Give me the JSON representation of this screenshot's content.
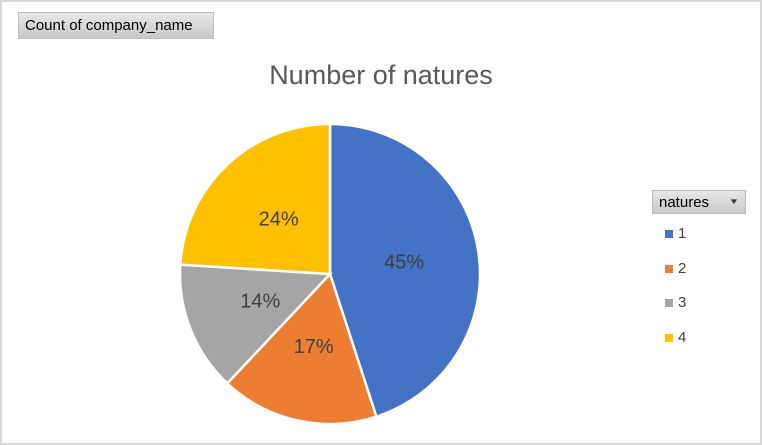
{
  "pivot": {
    "values_button_label": "Count of company_name",
    "legend_field_button_label": "natures"
  },
  "chart_data": {
    "type": "pie",
    "title": "Number of natures",
    "categories": [
      "1",
      "2",
      "3",
      "4"
    ],
    "values": [
      45,
      17,
      14,
      24
    ],
    "percent_labels": [
      "45%",
      "17%",
      "14%",
      "24%"
    ],
    "colors": [
      "#4472C4",
      "#ED7D31",
      "#A5A5A5",
      "#FFC000"
    ],
    "legend": {
      "title": "natures",
      "position": "right",
      "entries": [
        "1",
        "2",
        "3",
        "4"
      ]
    },
    "start_angle_deg": 0,
    "direction": "clockwise",
    "slice_border_color": "#FFFFFF",
    "title_color": "#595959",
    "label_color": "#404040"
  }
}
